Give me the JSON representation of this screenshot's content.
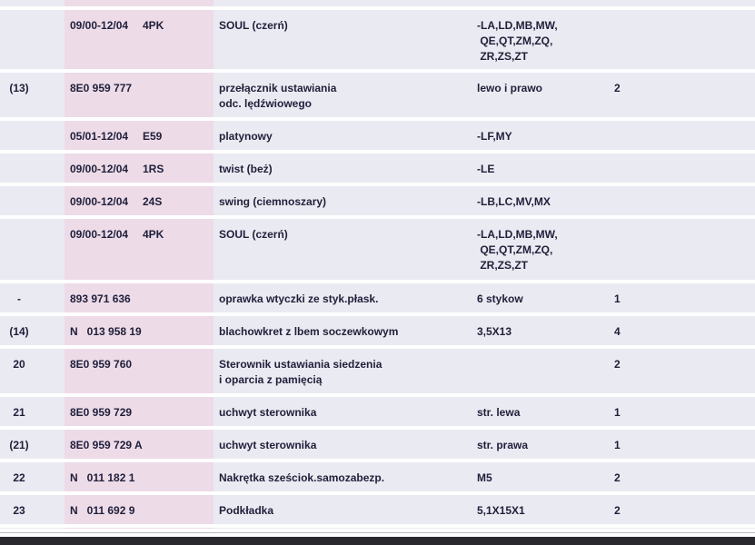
{
  "rows": [
    {
      "type": "variant",
      "date": "",
      "code": "",
      "desc": "",
      "remark": "",
      "qty": ""
    },
    {
      "type": "variant",
      "date": "09/00-12/04",
      "code": "4PK",
      "desc": "SOUL (czerń)",
      "remark": "-LA,LD,MB,MW,\n QE,QT,ZM,ZQ,\n ZR,ZS,ZT",
      "qty": ""
    },
    {
      "type": "part",
      "pos": "(13)",
      "partno": "8E0 959 777",
      "desc": "przełącznik ustawiania\nodc. lędźwiowego",
      "remark": "lewo i prawo",
      "qty": "2"
    },
    {
      "type": "variant",
      "date": "05/01-12/04",
      "code": "E59",
      "desc": "platynowy",
      "remark": "-LF,MY",
      "qty": ""
    },
    {
      "type": "variant",
      "date": "09/00-12/04",
      "code": "1RS",
      "desc": "twist (beż)",
      "remark": "-LE",
      "qty": ""
    },
    {
      "type": "variant",
      "date": "09/00-12/04",
      "code": "24S",
      "desc": "swing (ciemnoszary)",
      "remark": "-LB,LC,MV,MX",
      "qty": ""
    },
    {
      "type": "variant",
      "date": "09/00-12/04",
      "code": "4PK",
      "desc": "SOUL (czerń)",
      "remark": "-LA,LD,MB,MW,\n QE,QT,ZM,ZQ,\n ZR,ZS,ZT",
      "qty": ""
    },
    {
      "type": "part",
      "pos": "-",
      "partno": "893 971 636",
      "desc": "oprawka wtyczki ze styk.płask.",
      "remark": "6 stykow",
      "qty": "1"
    },
    {
      "type": "part",
      "pos": "(14)",
      "partno": "N   013 958 19",
      "desc": "blachowkret z lbem soczewkowym",
      "remark": "3,5X13",
      "qty": "4"
    },
    {
      "type": "part",
      "pos": "20",
      "partno": "8E0 959 760",
      "desc": "Sterownik ustawiania siedzenia\ni oparcia z pamięcią",
      "remark": "",
      "qty": "2"
    },
    {
      "type": "part",
      "pos": "21",
      "partno": "8E0 959 729",
      "desc": "uchwyt sterownika",
      "remark": "str. lewa",
      "qty": "1"
    },
    {
      "type": "part",
      "pos": "(21)",
      "partno": "8E0 959 729 A",
      "desc": "uchwyt sterownika",
      "remark": "str. prawa",
      "qty": "1"
    },
    {
      "type": "part",
      "pos": "22",
      "partno": "N   011 182 1",
      "desc": "Nakrętka sześciok.samozabezp.",
      "remark": "M5",
      "qty": "2"
    },
    {
      "type": "part",
      "pos": "23",
      "partno": "N   011 692 9",
      "desc": "Podkładka",
      "remark": "5,1X15X1",
      "qty": "2"
    },
    {
      "type": "variant",
      "date": "",
      "code": "",
      "desc": "",
      "remark": "",
      "qty": ""
    }
  ]
}
